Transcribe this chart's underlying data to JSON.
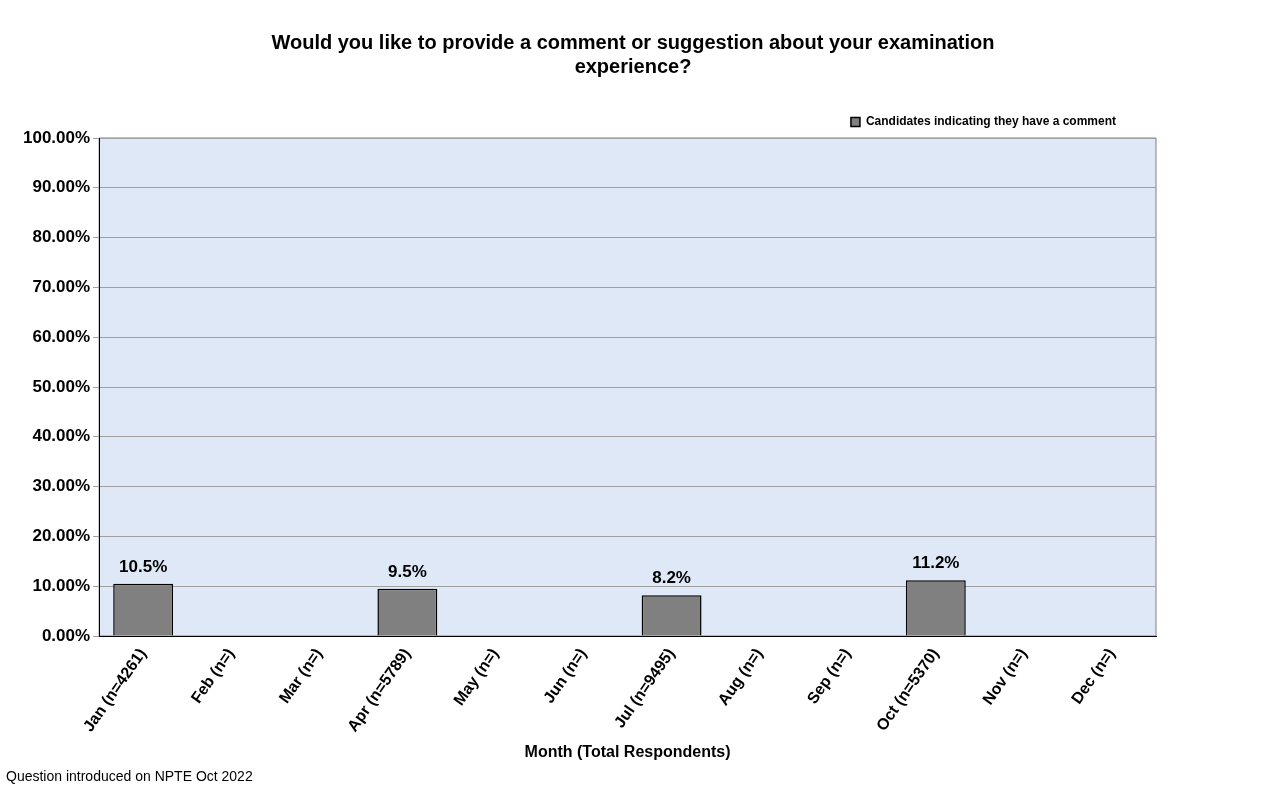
{
  "chart_data": {
    "type": "bar",
    "title": "Would you like to provide a comment or suggestion about your examination experience?",
    "xlabel": "Month (Total Respondents)",
    "categories": [
      "Jan (n=4261)",
      "Feb (n=)",
      "Mar (n=)",
      "Apr (n=5789)",
      "May (n=)",
      "Jun (n=)",
      "Jul (n=9495)",
      "Aug (n=)",
      "Sep (n=)",
      "Oct (n=5370)",
      "Nov (n=)",
      "Dec (n=)"
    ],
    "series": [
      {
        "name": "Candidates indicating they have a comment",
        "color": "#808080",
        "values": [
          10.5,
          null,
          null,
          9.5,
          null,
          null,
          8.2,
          null,
          null,
          11.2,
          null,
          null
        ],
        "value_labels": [
          "10.5%",
          null,
          null,
          "9.5%",
          null,
          null,
          "8.2%",
          null,
          null,
          "11.2%",
          null,
          null
        ]
      }
    ],
    "ylim": [
      0,
      100
    ],
    "yticks": [
      {
        "value": 0,
        "label": "0.00%"
      },
      {
        "value": 10,
        "label": "10.00%"
      },
      {
        "value": 20,
        "label": "20.00%"
      },
      {
        "value": 30,
        "label": "30.00%"
      },
      {
        "value": 40,
        "label": "40.00%"
      },
      {
        "value": 50,
        "label": "50.00%"
      },
      {
        "value": 60,
        "label": "60.00%"
      },
      {
        "value": 70,
        "label": "70.00%"
      },
      {
        "value": 80,
        "label": "80.00%"
      },
      {
        "value": 90,
        "label": "90.00%"
      },
      {
        "value": 100,
        "label": "100.00%"
      }
    ],
    "grid": "y",
    "legend": "top right",
    "annotations": [
      "Question introduced on NPTE Oct 2022"
    ]
  }
}
